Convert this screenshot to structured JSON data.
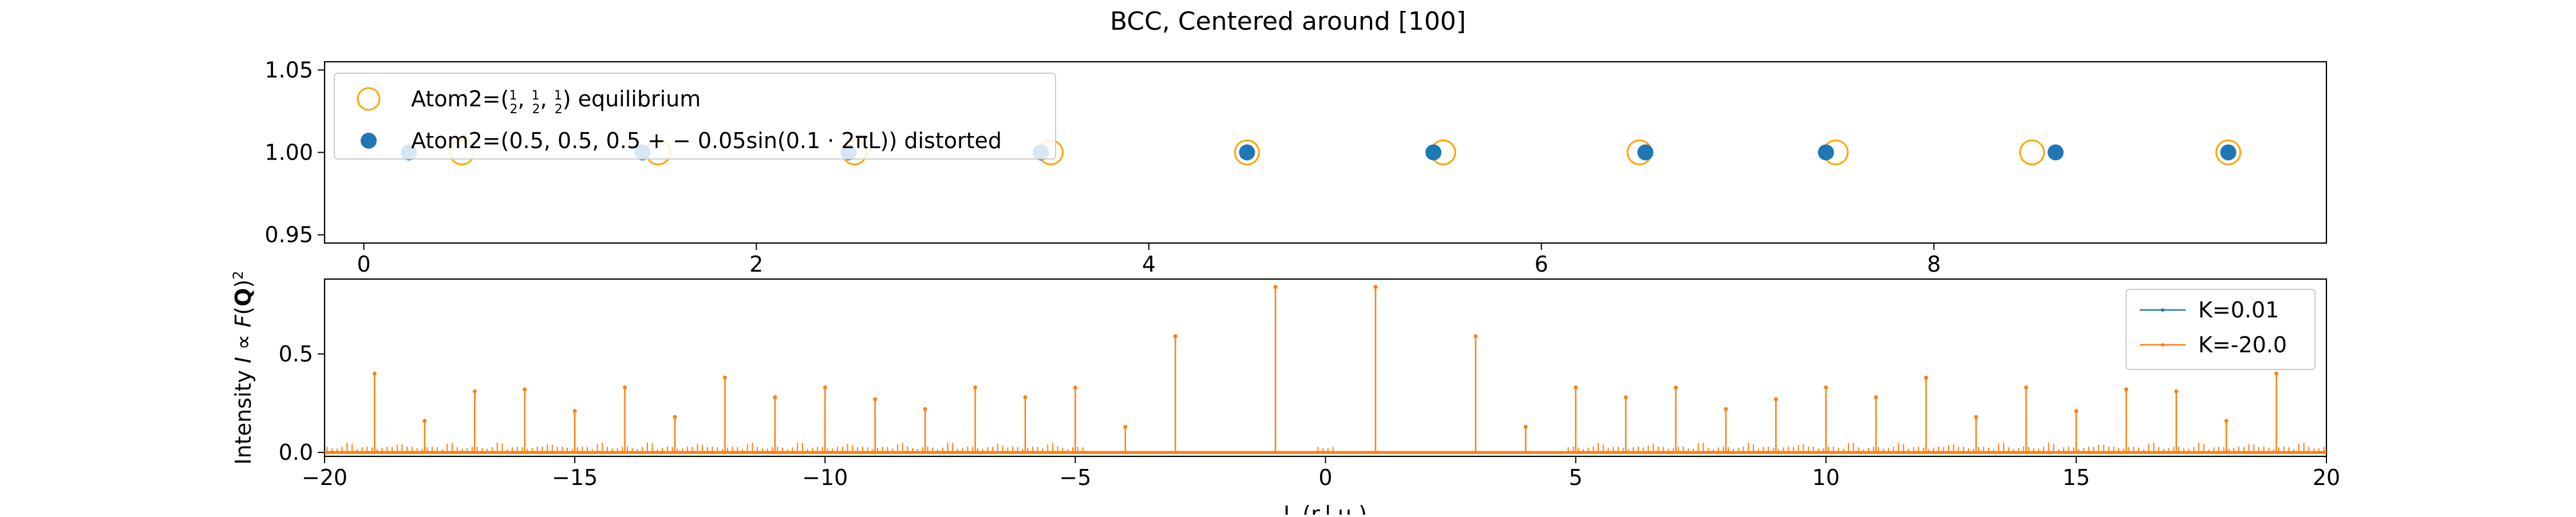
{
  "figure": {
    "title": "BCC, Centered around [100]"
  },
  "chart_data": [
    {
      "type": "scatter",
      "title": "",
      "xlabel": "",
      "ylabel": "",
      "xlim": [
        -0.2,
        10.0
      ],
      "ylim": [
        0.945,
        1.055
      ],
      "xticks": [
        0,
        2,
        4,
        6,
        8
      ],
      "yticks": [
        0.95,
        1.0,
        1.05
      ],
      "ytick_labels": [
        "0.95",
        "1.00",
        "1.05"
      ],
      "legend": {
        "placement": "upper-left",
        "entries": [
          {
            "label_prefix": "Atom2=(",
            "label_fracs": [
              "1",
              "2"
            ],
            "label_suffix": ") equilibrium"
          },
          {
            "label": "Atom2=(0.5, 0.5, 0.5 + − 0.05sin(0.1 · 2πL)) distorted"
          }
        ]
      },
      "series": [
        {
          "name": "equilibrium",
          "marker": "open-circle",
          "color": "#ffa500",
          "x": [
            0.5,
            1.5,
            2.5,
            3.5,
            4.5,
            5.5,
            6.5,
            7.5,
            8.5,
            9.5
          ],
          "y": [
            1,
            1,
            1,
            1,
            1,
            1,
            1,
            1,
            1,
            1
          ]
        },
        {
          "name": "distorted",
          "marker": "filled-circle",
          "color": "#1f77b4",
          "x": [
            0.23,
            1.42,
            2.47,
            3.45,
            4.5,
            5.45,
            6.53,
            7.45,
            8.62,
            9.5
          ],
          "y": [
            1,
            1,
            1,
            1,
            1,
            1,
            1,
            1,
            1,
            1
          ]
        }
      ]
    },
    {
      "type": "line",
      "title": "",
      "xlabel": "L (r.l.u.)",
      "ylabel": "Intensity I ∝ F(Q)²",
      "xlim": [
        -20,
        20
      ],
      "ylim": [
        -0.02,
        0.88
      ],
      "xticks": [
        -20,
        -15,
        -10,
        -5,
        0,
        5,
        10,
        15,
        20
      ],
      "xtick_labels": [
        "−20",
        "−15",
        "−10",
        "−5",
        "0",
        "5",
        "10",
        "15",
        "20"
      ],
      "yticks": [
        0.0,
        0.5
      ],
      "ytick_labels": [
        "0.0",
        "0.5"
      ],
      "legend": {
        "placement": "upper-right"
      },
      "series": [
        {
          "name": "K=0.01",
          "color": "#1f77b4",
          "x": [
            -20,
            20
          ],
          "y": [
            0,
            0
          ]
        },
        {
          "name": "K=-20.0",
          "color": "#ff7f0e",
          "x": [
            -19,
            -18,
            -17,
            -16,
            -15,
            -14,
            -13,
            -12,
            -11,
            -10,
            -9,
            -8,
            -7,
            -6,
            -5,
            -4,
            -3,
            -1,
            1,
            3,
            4,
            5,
            6,
            7,
            8,
            9,
            10,
            11,
            12,
            13,
            14,
            15,
            16,
            17,
            18,
            19
          ],
          "y": [
            0.4,
            0.16,
            0.31,
            0.32,
            0.21,
            0.33,
            0.18,
            0.38,
            0.28,
            0.33,
            0.27,
            0.22,
            0.33,
            0.28,
            0.33,
            0.13,
            0.59,
            0.84,
            0.84,
            0.59,
            0.13,
            0.33,
            0.28,
            0.33,
            0.22,
            0.27,
            0.33,
            0.28,
            0.38,
            0.18,
            0.33,
            0.21,
            0.32,
            0.31,
            0.16,
            0.4
          ]
        }
      ]
    }
  ]
}
